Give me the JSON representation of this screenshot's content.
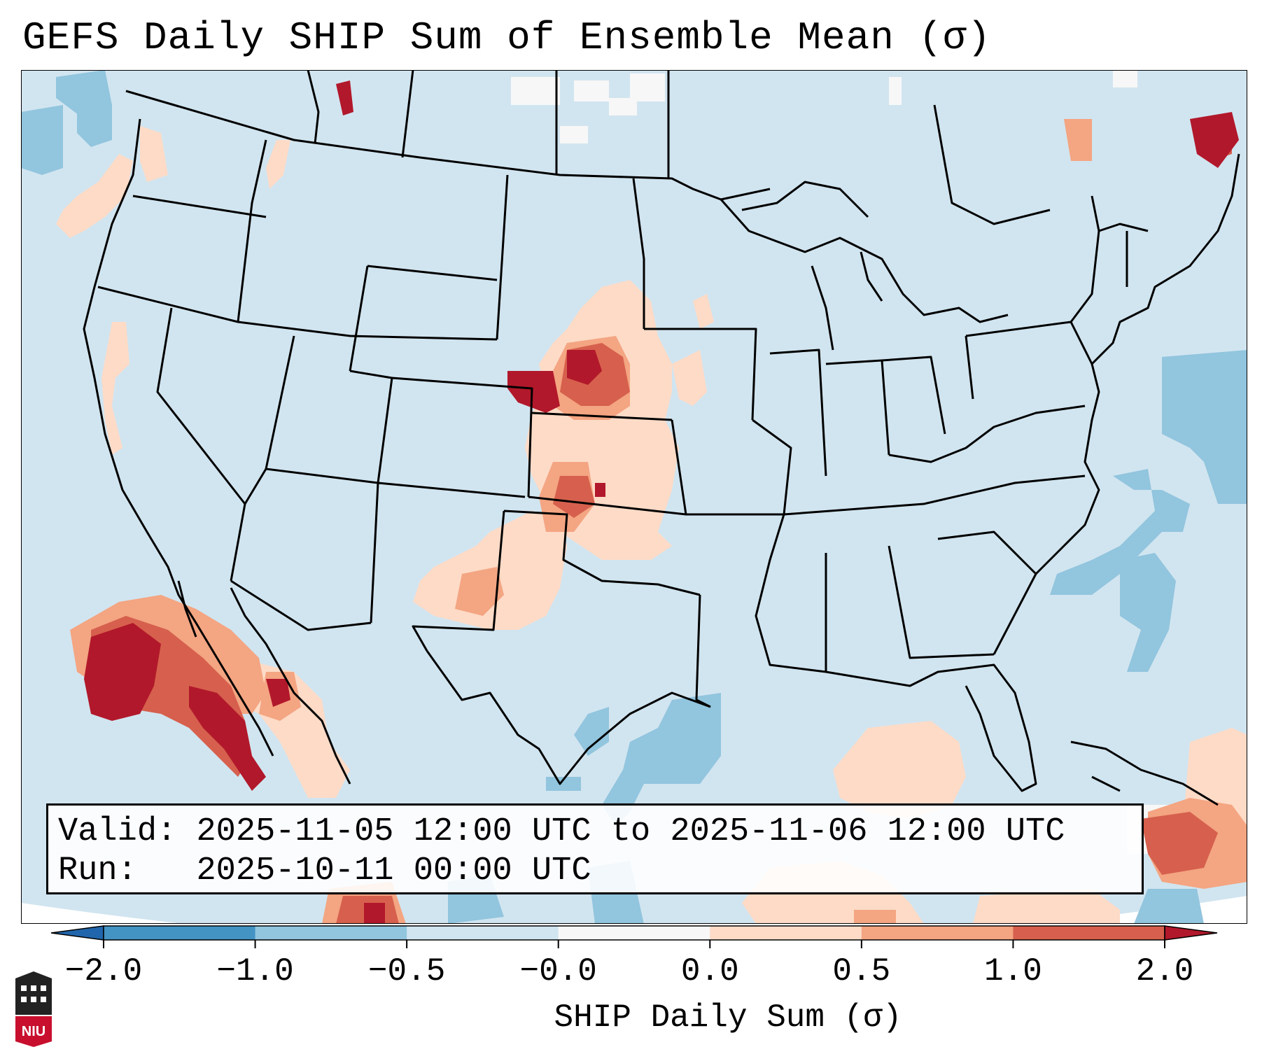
{
  "title": "GEFS Daily SHIP Sum of Ensemble Mean (σ)",
  "info": {
    "valid_label": "Valid:",
    "valid_value": "2025-11-05 12:00 UTC to 2025-11-06 12:00 UTC",
    "run_label": "Run:",
    "run_value": "2025-10-11 00:00 UTC"
  },
  "colorbar": {
    "label": "SHIP Daily Sum (σ)",
    "ticks": [
      "−2.0",
      "−1.0",
      "−0.5",
      "−0.0",
      "0.0",
      "0.5",
      "1.0",
      "2.0"
    ],
    "bins": [
      {
        "range": "< -2.0",
        "color": "#2166ac"
      },
      {
        "range": "-2.0 to -1.0",
        "color": "#4393c3"
      },
      {
        "range": "-1.0 to -0.5",
        "color": "#92c5de"
      },
      {
        "range": "-0.5 to -0.0",
        "color": "#d1e5f0"
      },
      {
        "range": "-0.0 to 0.0",
        "color": "#f7f7f7"
      },
      {
        "range": "0.0 to 0.5",
        "color": "#fddbc7"
      },
      {
        "range": "0.5 to 1.0",
        "color": "#f4a582"
      },
      {
        "range": "1.0 to 2.0",
        "color": "#d6604d"
      },
      {
        "range": "> 2.0",
        "color": "#b2182b"
      }
    ]
  },
  "anomaly_regions": [
    {
      "region": "Nebraska / Kansas / Oklahoma plains",
      "category": "positive"
    },
    {
      "region": "Baja California / NW Mexico",
      "category": "strong positive"
    },
    {
      "region": "Northern Maine / New Brunswick",
      "category": "strong positive"
    },
    {
      "region": "Western Atlantic offshore",
      "category": "negative"
    },
    {
      "region": "Texas Gulf coast",
      "category": "negative"
    },
    {
      "region": "Caribbean / Gulf of Mexico south",
      "category": "positive"
    }
  ],
  "logo": {
    "text": "NIU",
    "color": "#c8102e"
  }
}
